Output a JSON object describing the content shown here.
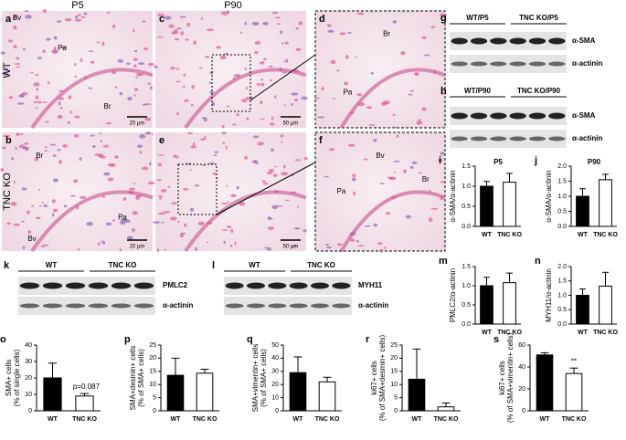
{
  "figure": {
    "columns": [
      "P5",
      "P90"
    ],
    "rows": [
      "WT",
      "TNC KO"
    ],
    "micrographs": [
      {
        "panel": "a",
        "labels": [
          "Bv",
          "Pa",
          "Br"
        ],
        "scale": "20 µm"
      },
      {
        "panel": "b",
        "labels": [
          "Br",
          "Pa",
          "Bv"
        ],
        "scale": "20 µm"
      },
      {
        "panel": "c",
        "scale": "50 µm"
      },
      {
        "panel": "e",
        "scale": "50 µm"
      },
      {
        "panel": "d",
        "labels": [
          "Br",
          "Pa"
        ]
      },
      {
        "panel": "f",
        "labels": [
          "Bv",
          "Pa",
          "Br"
        ]
      }
    ],
    "blots": [
      {
        "panel": "g",
        "groups": [
          "WT/P5",
          "TNC KO/P5"
        ],
        "bands": [
          "α-SMA",
          "α-actinin"
        ]
      },
      {
        "panel": "h",
        "groups": [
          "WT/P90",
          "TNC KO/P90"
        ],
        "bands": [
          "α-SMA",
          "α-actinin"
        ]
      },
      {
        "panel": "k",
        "groups": [
          "WT",
          "TNC KO"
        ],
        "bands": [
          "PMLC2",
          "α-actinin"
        ]
      },
      {
        "panel": "l",
        "groups": [
          "WT",
          "TNC KO"
        ],
        "bands": [
          "MYH11",
          "α-actinin"
        ]
      }
    ]
  },
  "chart_data": [
    {
      "type": "bar",
      "panel": "i",
      "title": "P5",
      "y_label": "α-SMA/α-actinin",
      "categories": [
        "WT",
        "TNC KO"
      ],
      "values": [
        1.0,
        1.1
      ],
      "errors": [
        0.12,
        0.22
      ],
      "colors": [
        "#000000",
        "#ffffff"
      ],
      "ylim": [
        0,
        1.5
      ],
      "yticks": [
        {
          "value": 0,
          "label": "0.0"
        },
        0.5,
        {
          "value": 1,
          "label": "1.0"
        },
        1.5
      ]
    },
    {
      "type": "bar",
      "panel": "j",
      "title": "P90",
      "y_label": "α-SMA/α-actinin",
      "categories": [
        "WT",
        "TNC KO"
      ],
      "values": [
        1.0,
        1.55
      ],
      "errors": [
        0.25,
        0.18
      ],
      "colors": [
        "#000000",
        "#ffffff"
      ],
      "ylim": [
        0,
        2
      ],
      "yticks": [
        {
          "value": 0,
          "label": "0.0"
        },
        0.5,
        {
          "value": 1,
          "label": "1.0"
        },
        1.5,
        {
          "value": 2,
          "label": "2.0"
        }
      ]
    },
    {
      "type": "bar",
      "panel": "m",
      "y_label": "PMLC2/α-actinin",
      "categories": [
        "WT",
        "TNC KO"
      ],
      "values": [
        1.0,
        1.08
      ],
      "errors": [
        0.22,
        0.25
      ],
      "colors": [
        "#000000",
        "#ffffff"
      ],
      "ylim": [
        0,
        1.5
      ],
      "yticks": [
        {
          "value": 0,
          "label": "0.0"
        },
        0.5,
        {
          "value": 1,
          "label": "1.0"
        },
        1.5
      ]
    },
    {
      "type": "bar",
      "panel": "n",
      "y_label": "MYH11/α-actinin",
      "categories": [
        "WT",
        "TNC KO"
      ],
      "values": [
        1.0,
        1.32
      ],
      "errors": [
        0.22,
        0.48
      ],
      "colors": [
        "#000000",
        "#ffffff"
      ],
      "ylim": [
        0,
        2
      ],
      "yticks": [
        {
          "value": 0,
          "label": "0.0"
        },
        0.5,
        {
          "value": 1,
          "label": "1.0"
        },
        1.5,
        {
          "value": 2,
          "label": "2.0"
        }
      ]
    },
    {
      "type": "bar",
      "panel": "o",
      "y_label": "SMA+ cells",
      "y_sublabel": "(% of single cells)",
      "categories": [
        "WT",
        "TNC KO"
      ],
      "values": [
        20,
        9
      ],
      "errors": [
        9,
        1.5
      ],
      "colors": [
        "#000000",
        "#ffffff"
      ],
      "ylim": [
        0,
        40
      ],
      "yticks": [
        0,
        10,
        20,
        30,
        40
      ],
      "annotation": "p=0.087"
    },
    {
      "type": "bar",
      "panel": "p",
      "y_label": "SMA+desmin+ cells",
      "y_sublabel": "(% of SMA+ cells)",
      "categories": [
        "WT",
        "TNC KO"
      ],
      "values": [
        13.5,
        14.3
      ],
      "errors": [
        6.5,
        1.5
      ],
      "colors": [
        "#000000",
        "#ffffff"
      ],
      "ylim": [
        0,
        25
      ],
      "yticks": [
        0,
        5,
        10,
        15,
        20,
        25
      ]
    },
    {
      "type": "bar",
      "panel": "q",
      "y_label": "SMA+vimentin+ cells",
      "y_sublabel": "(% of SMA+ cells)",
      "categories": [
        "WT",
        "TNC KO"
      ],
      "values": [
        29,
        22
      ],
      "errors": [
        12,
        3.5
      ],
      "colors": [
        "#000000",
        "#ffffff"
      ],
      "ylim": [
        0,
        50
      ],
      "yticks": [
        0,
        10,
        20,
        30,
        40,
        50
      ]
    },
    {
      "type": "bar",
      "panel": "r",
      "y_label": "ki67+ cells",
      "y_sublabel": "(% of SMA+desmin+ cells)",
      "categories": [
        "WT",
        "TNC KO"
      ],
      "values": [
        12,
        1.5
      ],
      "errors": [
        11.5,
        1.5
      ],
      "colors": [
        "#000000",
        "#ffffff"
      ],
      "ylim": [
        0,
        25
      ],
      "yticks": [
        0,
        5,
        10,
        15,
        20,
        25
      ]
    },
    {
      "type": "bar",
      "panel": "s",
      "y_label": "ki67+ cells",
      "y_sublabel": "(% of SMA+vimentin+ cells)",
      "categories": [
        "WT",
        "TNC KO"
      ],
      "values": [
        51,
        34
      ],
      "errors": [
        2,
        5
      ],
      "colors": [
        "#000000",
        "#ffffff"
      ],
      "ylim": [
        0,
        60
      ],
      "yticks": [
        0,
        20,
        40,
        60
      ],
      "annotation": "**"
    }
  ]
}
